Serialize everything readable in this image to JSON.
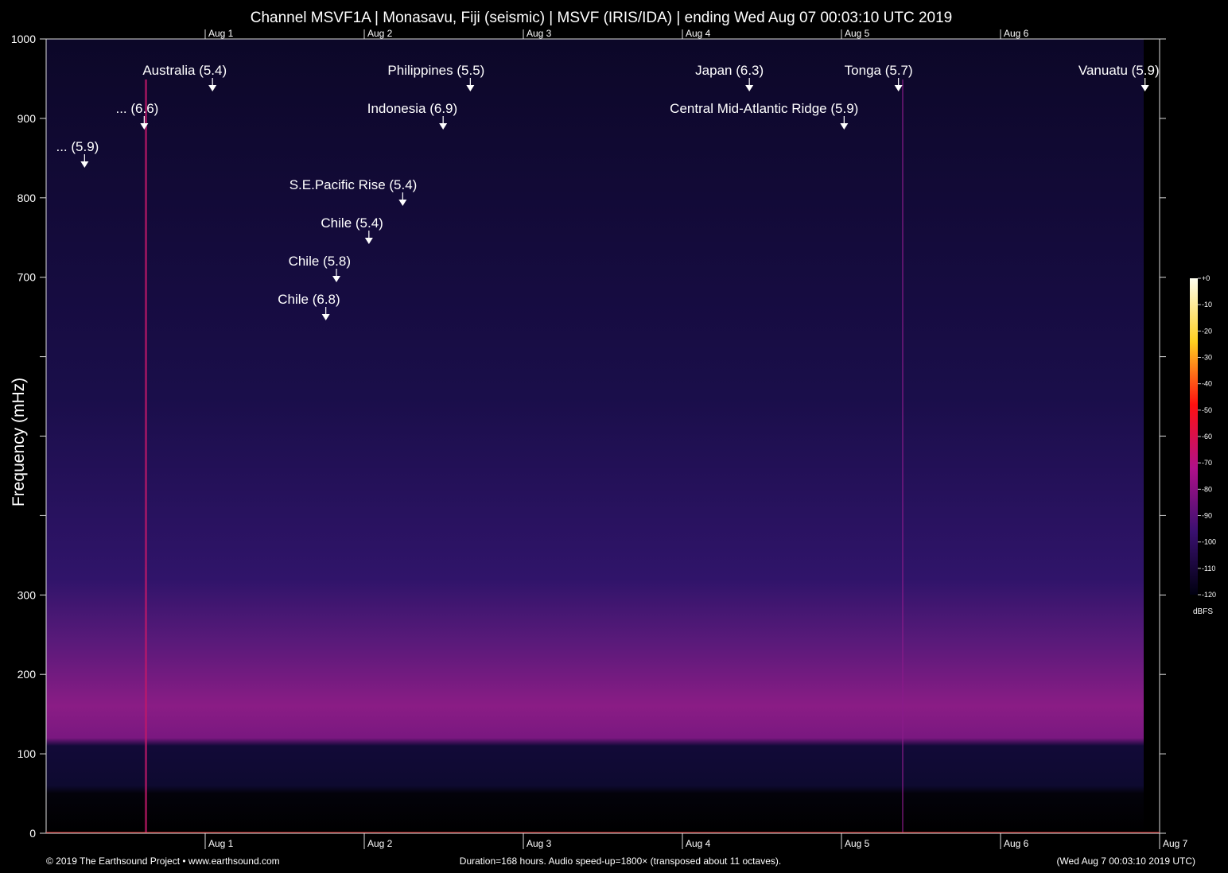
{
  "chart_data": {
    "type": "spectrogram",
    "title": "Channel MSVF1A | Monasavu, Fiji (seismic) | MSVF (IRIS/IDA) | ending Wed Aug 07 00:03:10 UTC 2019",
    "y_label": "Frequency (mHz)",
    "xlim": [
      0,
      168
    ],
    "xticks": [
      {
        "value": 24,
        "label": "Aug 1"
      },
      {
        "value": 48,
        "label": "Aug 2"
      },
      {
        "value": 72,
        "label": "Aug 3"
      },
      {
        "value": 96,
        "label": "Aug 4"
      },
      {
        "value": 120,
        "label": "Aug 5"
      },
      {
        "value": 144,
        "label": "Aug 6"
      },
      {
        "value": 168,
        "label": "Aug 7"
      }
    ],
    "ylim": [
      0,
      1000
    ],
    "yticks": [
      0,
      100,
      200,
      300,
      700,
      800,
      900,
      1000
    ],
    "minor_yticks": [
      400,
      500,
      600
    ],
    "annotations": [
      {
        "text": "... (5.9)",
        "x": 5.8
      },
      {
        "text": "... (6.6)",
        "x": 14.8
      },
      {
        "text": "Australia (5.4)",
        "x": 25.1
      },
      {
        "text": "Chile (6.8)",
        "x": 42.2
      },
      {
        "text": "Chile (5.8)",
        "x": 43.8
      },
      {
        "text": "Chile (5.4)",
        "x": 48.7
      },
      {
        "text": "S.E.Pacific Rise (5.4)",
        "x": 53.8
      },
      {
        "text": "Indonesia (6.9)",
        "x": 59.9
      },
      {
        "text": "Philippines (5.5)",
        "x": 64.0
      },
      {
        "text": "Japan (6.3)",
        "x": 106.1
      },
      {
        "text": "Central Mid-Atlantic Ridge (5.9)",
        "x": 120.4
      },
      {
        "text": "Tonga (5.7)",
        "x": 128.6
      },
      {
        "text": "Vanuatu (5.9)",
        "x": 165.8
      }
    ],
    "colorbar": {
      "label": "dBFS",
      "lim": [
        -120,
        0
      ],
      "ticks": [
        {
          "value": 0,
          "label": "+0"
        },
        -10,
        -20,
        -30,
        -40,
        -50,
        -60,
        -70,
        -80,
        -90,
        -100,
        -110,
        -120
      ]
    },
    "footer": {
      "left": "© 2019 The Earthsound Project • www.earthsound.com",
      "center": "Duration=168 hours. Audio speed-up=1800× (transposed about 11 octaves).",
      "right": "(Wed Aug  7 00:03:10 2019 UTC)"
    }
  }
}
